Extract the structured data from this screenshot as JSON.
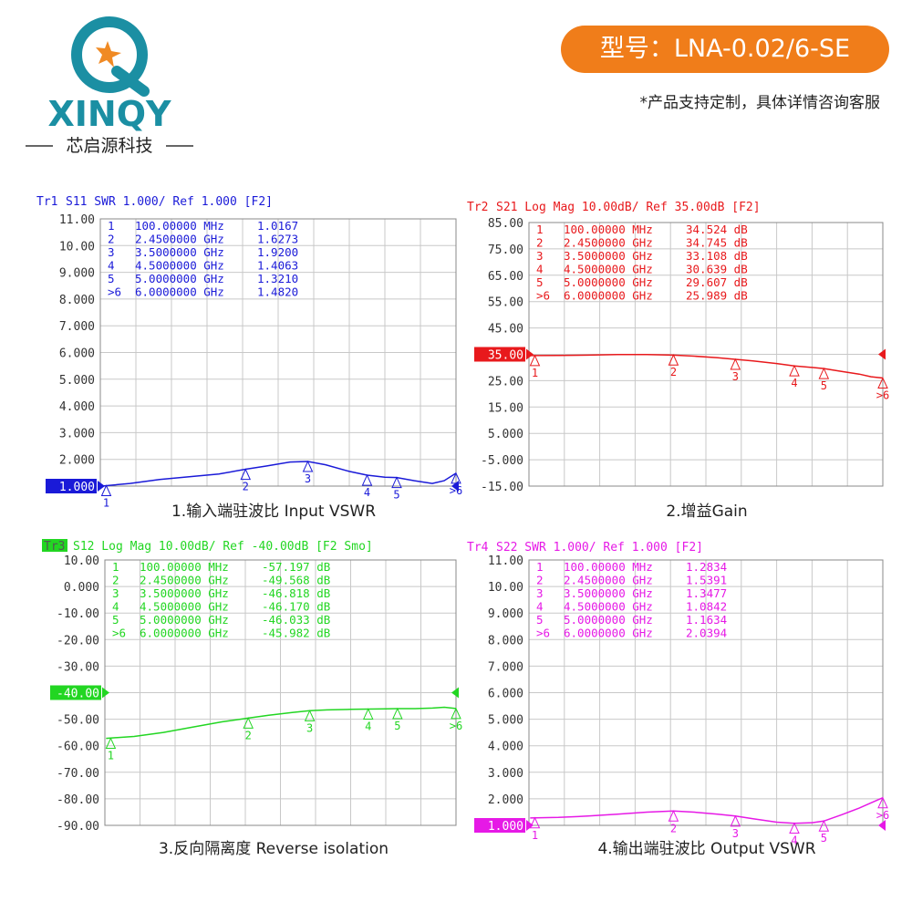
{
  "header": {
    "brand": "XINQY",
    "brand_cn": "芯启源科技",
    "model": "型号：LNA-0.02/6-SE",
    "note": "*产品支持定制，具体详情咨询客服"
  },
  "chart_data": [
    {
      "type": "line",
      "trace": "Tr1",
      "title": "S11 SWR 1.000/ Ref 1.000 [F2]",
      "caption": "1.输入端驻波比 Input VSWR",
      "xlim": [
        0,
        6
      ],
      "ylim": [
        1,
        11
      ],
      "ref_level": 1,
      "yticks": [
        {
          "value": 11,
          "label": "11.00"
        },
        {
          "value": 10,
          "label": "10.00"
        },
        {
          "value": 9,
          "label": "9.000"
        },
        {
          "value": 8,
          "label": "8.000"
        },
        {
          "value": 7,
          "label": "7.000"
        },
        {
          "value": 6,
          "label": "6.000"
        },
        {
          "value": 5,
          "label": "5.000"
        },
        {
          "value": 4,
          "label": "4.000"
        },
        {
          "value": 3,
          "label": "3.000"
        },
        {
          "value": 2,
          "label": "2.000"
        },
        {
          "value": 1,
          "label": "1.000"
        }
      ],
      "x": [
        0.02,
        0.5,
        1,
        1.5,
        2,
        2.45,
        2.8,
        3.2,
        3.5,
        3.8,
        4.2,
        4.5,
        4.8,
        5,
        5.3,
        5.6,
        5.8,
        6
      ],
      "series": [
        {
          "name": "S11",
          "color": "#1a1ad8",
          "values": [
            1.0,
            1.1,
            1.25,
            1.35,
            1.45,
            1.63,
            1.75,
            1.9,
            1.92,
            1.8,
            1.55,
            1.41,
            1.33,
            1.32,
            1.2,
            1.1,
            1.2,
            1.48
          ]
        }
      ],
      "markers": {
        "names": [
          "1",
          "2",
          "3",
          "4",
          "5",
          ">6"
        ],
        "freqs": [
          "100.00000 MHz",
          "2.4500000 GHz",
          "3.5000000 GHz",
          "4.5000000 GHz",
          "5.0000000 GHz",
          "6.0000000 GHz"
        ],
        "x": [
          0.1,
          2.45,
          3.5,
          4.5,
          5,
          6
        ],
        "values": [
          1.0167,
          1.6273,
          1.92,
          1.4063,
          1.321,
          1.482
        ],
        "value_labels": [
          "1.0167",
          "1.6273",
          "1.9200",
          "1.4063",
          "1.3210",
          "1.4820"
        ]
      }
    },
    {
      "type": "line",
      "trace": "Tr2",
      "title": "S21 Log Mag 10.00dB/ Ref 35.00dB [F2]",
      "caption": "2.增益Gain",
      "xlim": [
        0,
        6
      ],
      "ylim": [
        -15,
        85
      ],
      "ref_level": 35,
      "yticks": [
        {
          "value": 85,
          "label": "85.00"
        },
        {
          "value": 75,
          "label": "75.00"
        },
        {
          "value": 65,
          "label": "65.00"
        },
        {
          "value": 55,
          "label": "55.00"
        },
        {
          "value": 45,
          "label": "45.00"
        },
        {
          "value": 35,
          "label": "35.00"
        },
        {
          "value": 25,
          "label": "25.00"
        },
        {
          "value": 15,
          "label": "15.00"
        },
        {
          "value": 5,
          "label": "5.000"
        },
        {
          "value": -5,
          "label": "-5.000"
        },
        {
          "value": -15,
          "label": "-15.00"
        }
      ],
      "x": [
        0.02,
        0.5,
        1,
        1.5,
        2,
        2.45,
        2.8,
        3.2,
        3.5,
        3.8,
        4.2,
        4.5,
        4.8,
        5,
        5.3,
        5.6,
        5.8,
        6
      ],
      "series": [
        {
          "name": "S21",
          "color": "#e8191c",
          "values": [
            34.5,
            34.6,
            34.7,
            34.9,
            34.9,
            34.7,
            34.3,
            33.7,
            33.1,
            32.5,
            31.5,
            30.6,
            30.0,
            29.6,
            28.5,
            27.5,
            26.5,
            26.0
          ]
        }
      ],
      "markers": {
        "names": [
          "1",
          "2",
          "3",
          "4",
          "5",
          ">6"
        ],
        "freqs": [
          "100.00000 MHz",
          "2.4500000 GHz",
          "3.5000000 GHz",
          "4.5000000 GHz",
          "5.0000000 GHz",
          "6.0000000 GHz"
        ],
        "x": [
          0.1,
          2.45,
          3.5,
          4.5,
          5,
          6
        ],
        "values": [
          34.524,
          34.745,
          33.108,
          30.639,
          29.607,
          25.989
        ],
        "value_labels": [
          "34.524 dB",
          "34.745 dB",
          "33.108 dB",
          "30.639 dB",
          "29.607 dB",
          "25.989 dB"
        ]
      }
    },
    {
      "type": "line",
      "trace": "Tr3",
      "trace_highlight": true,
      "title": "S12 Log Mag 10.00dB/ Ref -40.00dB [F2 Smo]",
      "caption": "3.反向隔离度 Reverse isolation",
      "xlim": [
        0,
        6
      ],
      "ylim": [
        -90,
        10
      ],
      "ref_level": -40,
      "yticks": [
        {
          "value": 10,
          "label": "10.00"
        },
        {
          "value": 0,
          "label": "0.000"
        },
        {
          "value": -10,
          "label": "-10.00"
        },
        {
          "value": -20,
          "label": "-20.00"
        },
        {
          "value": -30,
          "label": "-30.00"
        },
        {
          "value": -40,
          "label": "-40.00"
        },
        {
          "value": -50,
          "label": "-50.00"
        },
        {
          "value": -60,
          "label": "-60.00"
        },
        {
          "value": -70,
          "label": "-70.00"
        },
        {
          "value": -80,
          "label": "-80.00"
        },
        {
          "value": -90,
          "label": "-90.00"
        }
      ],
      "x": [
        0.02,
        0.5,
        1,
        1.5,
        2,
        2.45,
        2.8,
        3.2,
        3.5,
        3.8,
        4.2,
        4.5,
        4.8,
        5,
        5.3,
        5.6,
        5.8,
        6
      ],
      "series": [
        {
          "name": "S12",
          "color": "#22d622",
          "values": [
            -57.2,
            -56.5,
            -55,
            -53,
            -51,
            -49.6,
            -48.5,
            -47.5,
            -46.8,
            -46.5,
            -46.3,
            -46.2,
            -46.1,
            -46.0,
            -46.0,
            -45.8,
            -45.5,
            -45.98
          ]
        }
      ],
      "markers": {
        "names": [
          "1",
          "2",
          "3",
          "4",
          "5",
          ">6"
        ],
        "freqs": [
          "100.00000 MHz",
          "2.4500000 GHz",
          "3.5000000 GHz",
          "4.5000000 GHz",
          "5.0000000 GHz",
          "6.0000000 GHz"
        ],
        "x": [
          0.1,
          2.45,
          3.5,
          4.5,
          5,
          6
        ],
        "values": [
          -57.197,
          -49.568,
          -46.818,
          -46.17,
          -46.033,
          -45.982
        ],
        "value_labels": [
          "-57.197 dB",
          "-49.568 dB",
          "-46.818 dB",
          "-46.170 dB",
          "-46.033 dB",
          "-45.982 dB"
        ]
      }
    },
    {
      "type": "line",
      "trace": "Tr4",
      "title": "S22 SWR 1.000/ Ref 1.000 [F2]",
      "caption": "4.输出端驻波比 Output VSWR",
      "xlim": [
        0,
        6
      ],
      "ylim": [
        1,
        11
      ],
      "ref_level": 1,
      "yticks": [
        {
          "value": 11,
          "label": "11.00"
        },
        {
          "value": 10,
          "label": "10.00"
        },
        {
          "value": 9,
          "label": "9.000"
        },
        {
          "value": 8,
          "label": "8.000"
        },
        {
          "value": 7,
          "label": "7.000"
        },
        {
          "value": 6,
          "label": "6.000"
        },
        {
          "value": 5,
          "label": "5.000"
        },
        {
          "value": 4,
          "label": "4.000"
        },
        {
          "value": 3,
          "label": "3.000"
        },
        {
          "value": 2,
          "label": "2.000"
        },
        {
          "value": 1,
          "label": "1.000"
        }
      ],
      "x": [
        0.02,
        0.5,
        1,
        1.5,
        2,
        2.45,
        2.8,
        3.2,
        3.5,
        3.8,
        4.2,
        4.5,
        4.8,
        5,
        5.3,
        5.6,
        5.8,
        6
      ],
      "series": [
        {
          "name": "S22",
          "color": "#e619e6",
          "values": [
            1.28,
            1.3,
            1.35,
            1.42,
            1.5,
            1.54,
            1.5,
            1.42,
            1.35,
            1.25,
            1.12,
            1.08,
            1.1,
            1.16,
            1.4,
            1.65,
            1.85,
            2.04
          ]
        }
      ],
      "markers": {
        "names": [
          "1",
          "2",
          "3",
          "4",
          "5",
          ">6"
        ],
        "freqs": [
          "100.00000 MHz",
          "2.4500000 GHz",
          "3.5000000 GHz",
          "4.5000000 GHz",
          "5.0000000 GHz",
          "6.0000000 GHz"
        ],
        "x": [
          0.1,
          2.45,
          3.5,
          4.5,
          5,
          6
        ],
        "values": [
          1.2834,
          1.5391,
          1.3477,
          1.0842,
          1.1634,
          2.0394
        ],
        "value_labels": [
          "1.2834",
          "1.5391",
          "1.3477",
          "1.0842",
          "1.1634",
          "2.0394"
        ]
      }
    }
  ]
}
